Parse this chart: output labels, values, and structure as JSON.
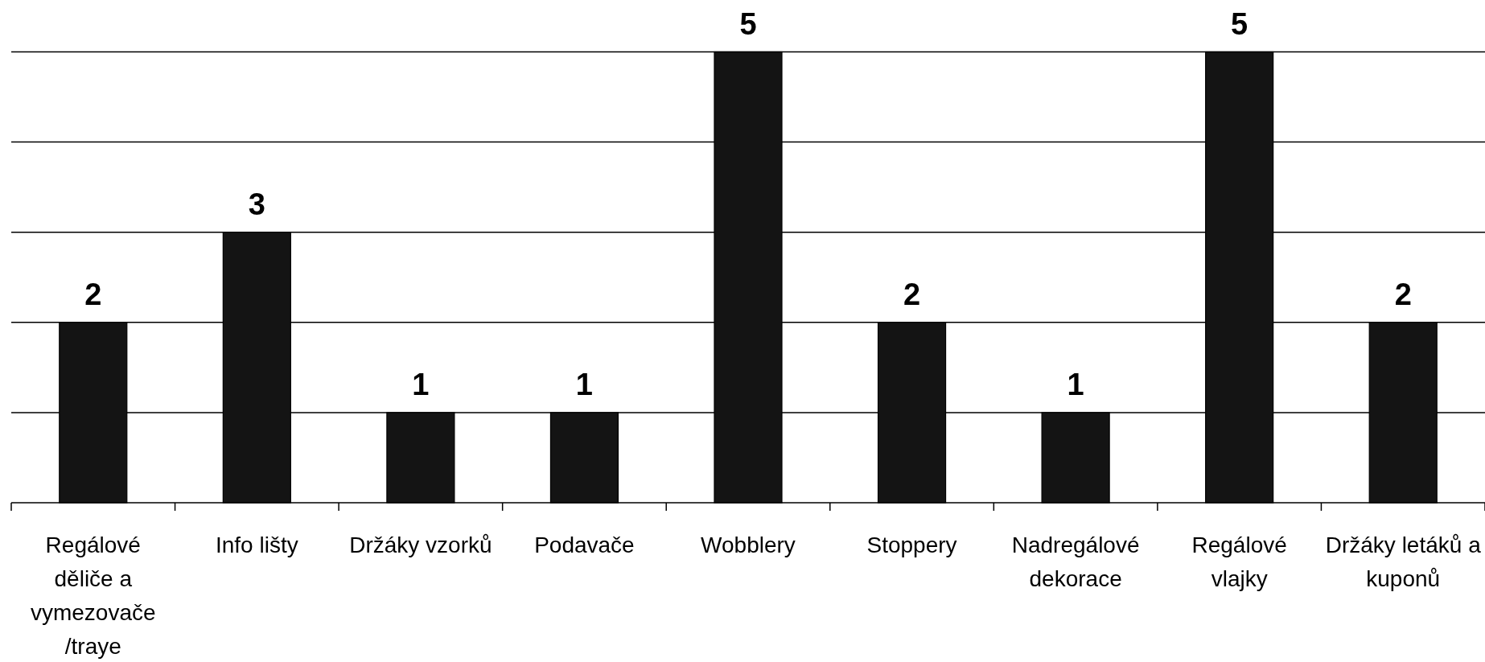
{
  "chart_data": {
    "type": "bar",
    "categories": [
      "Regálové děliče a vymezovače /traye",
      "Info lišty",
      "Držáky vzorků",
      "Podavače",
      "Wobblery",
      "Stoppery",
      "Nadregálové dekorace",
      "Regálové vlajky",
      "Držáky letáků a kuponů"
    ],
    "values": [
      2,
      3,
      1,
      1,
      5,
      2,
      1,
      5,
      2
    ],
    "color": "#141414",
    "ylim": [
      0,
      5
    ],
    "yticks": [
      {
        "value": 1,
        "label": null
      },
      {
        "value": 2,
        "label": null
      },
      {
        "value": 3,
        "label": null
      },
      {
        "value": 4,
        "label": null
      },
      {
        "value": 5,
        "label": null
      }
    ],
    "grid": "y",
    "tick_labels": "x",
    "data_labels": true
  }
}
